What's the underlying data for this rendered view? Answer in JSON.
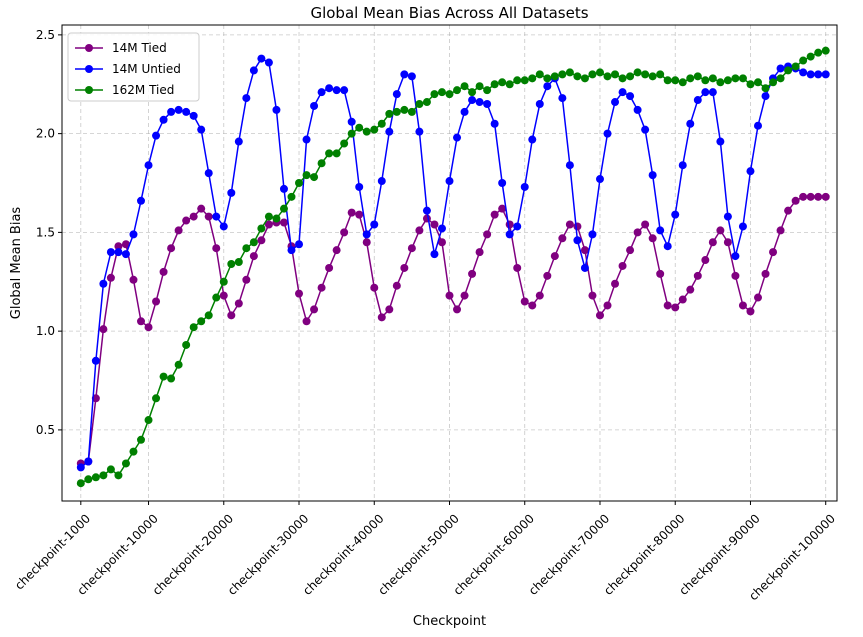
{
  "chart_data": {
    "type": "line",
    "title": "Global Mean Bias Across All Datasets",
    "xlabel": "Checkpoint",
    "ylabel": "Global Mean Bias",
    "ylim": [
      0.14,
      2.55
    ],
    "yticks": [
      0.5,
      1.0,
      1.5,
      2.0,
      2.5
    ],
    "ytick_labels": [
      "0.5",
      "1.0",
      "1.5",
      "2.0",
      "2.5"
    ],
    "xlim": [
      -1.5,
      101.5
    ],
    "xtick_positions": [
      1,
      10,
      20,
      30,
      40,
      50,
      60,
      70,
      80,
      90,
      100
    ],
    "xtick_labels": [
      "checkpoint-1000",
      "checkpoint-10000",
      "checkpoint-20000",
      "checkpoint-30000",
      "checkpoint-40000",
      "checkpoint-50000",
      "checkpoint-60000",
      "checkpoint-70000",
      "checkpoint-80000",
      "checkpoint-90000",
      "checkpoint-100000"
    ],
    "grid": true,
    "legend_position": "upper-left",
    "x": [
      1,
      2,
      3,
      4,
      5,
      6,
      7,
      8,
      9,
      10,
      11,
      12,
      13,
      14,
      15,
      16,
      17,
      18,
      19,
      20,
      21,
      22,
      23,
      24,
      25,
      26,
      27,
      28,
      29,
      30,
      31,
      32,
      33,
      34,
      35,
      36,
      37,
      38,
      39,
      40,
      41,
      42,
      43,
      44,
      45,
      46,
      47,
      48,
      49,
      50,
      51,
      52,
      53,
      54,
      55,
      56,
      57,
      58,
      59,
      60,
      61,
      62,
      63,
      64,
      65,
      66,
      67,
      68,
      69,
      70,
      71,
      72,
      73,
      74,
      75,
      76,
      77,
      78,
      79,
      80,
      81,
      82,
      83,
      84,
      85,
      86,
      87,
      88,
      89,
      90,
      91,
      92,
      93,
      94,
      95,
      96,
      97,
      98,
      99,
      100
    ],
    "series": [
      {
        "name": "14M Tied",
        "color": "#800080",
        "values": [
          0.33,
          0.34,
          0.66,
          1.01,
          1.27,
          1.43,
          1.44,
          1.26,
          1.05,
          1.02,
          1.15,
          1.3,
          1.42,
          1.51,
          1.56,
          1.58,
          1.62,
          1.58,
          1.42,
          1.18,
          1.08,
          1.14,
          1.26,
          1.38,
          1.46,
          1.54,
          1.55,
          1.55,
          1.43,
          1.19,
          1.05,
          1.11,
          1.22,
          1.32,
          1.41,
          1.5,
          1.6,
          1.59,
          1.45,
          1.22,
          1.07,
          1.11,
          1.23,
          1.32,
          1.42,
          1.51,
          1.57,
          1.54,
          1.45,
          1.18,
          1.11,
          1.18,
          1.29,
          1.4,
          1.49,
          1.59,
          1.62,
          1.54,
          1.32,
          1.15,
          1.13,
          1.18,
          1.28,
          1.38,
          1.47,
          1.54,
          1.53,
          1.41,
          1.18,
          1.08,
          1.13,
          1.24,
          1.33,
          1.41,
          1.5,
          1.54,
          1.47,
          1.29,
          1.13,
          1.12,
          1.16,
          1.21,
          1.28,
          1.36,
          1.45,
          1.51,
          1.45,
          1.28,
          1.13,
          1.1,
          1.17,
          1.29,
          1.4,
          1.51,
          1.61,
          1.66,
          1.68,
          1.68,
          1.68,
          1.68
        ]
      },
      {
        "name": "14M Untied",
        "color": "#0000ff",
        "values": [
          0.31,
          0.34,
          0.85,
          1.24,
          1.4,
          1.4,
          1.39,
          1.49,
          1.66,
          1.84,
          1.99,
          2.07,
          2.11,
          2.12,
          2.11,
          2.09,
          2.02,
          1.8,
          1.58,
          1.53,
          1.7,
          1.96,
          2.18,
          2.32,
          2.38,
          2.36,
          2.12,
          1.72,
          1.41,
          1.44,
          1.97,
          2.14,
          2.21,
          2.23,
          2.22,
          2.22,
          2.06,
          1.73,
          1.49,
          1.54,
          1.76,
          2.01,
          2.2,
          2.3,
          2.29,
          2.01,
          1.61,
          1.39,
          1.52,
          1.76,
          1.98,
          2.11,
          2.17,
          2.16,
          2.15,
          2.05,
          1.75,
          1.49,
          1.53,
          1.73,
          1.97,
          2.15,
          2.24,
          2.28,
          2.18,
          1.84,
          1.46,
          1.32,
          1.49,
          1.77,
          2.0,
          2.16,
          2.21,
          2.19,
          2.12,
          2.02,
          1.79,
          1.51,
          1.43,
          1.59,
          1.84,
          2.05,
          2.17,
          2.21,
          2.21,
          1.96,
          1.58,
          1.38,
          1.53,
          1.81,
          2.04,
          2.19,
          2.28,
          2.33,
          2.34,
          2.33,
          2.31,
          2.3,
          2.3,
          2.3
        ]
      },
      {
        "name": "162M Tied",
        "color": "#008000",
        "values": [
          0.23,
          0.25,
          0.26,
          0.27,
          0.3,
          0.27,
          0.33,
          0.39,
          0.45,
          0.55,
          0.66,
          0.77,
          0.76,
          0.83,
          0.93,
          1.02,
          1.05,
          1.08,
          1.17,
          1.25,
          1.34,
          1.35,
          1.42,
          1.45,
          1.52,
          1.58,
          1.57,
          1.62,
          1.68,
          1.75,
          1.79,
          1.78,
          1.85,
          1.9,
          1.9,
          1.95,
          2.0,
          2.03,
          2.01,
          2.02,
          2.05,
          2.1,
          2.11,
          2.12,
          2.11,
          2.15,
          2.16,
          2.2,
          2.21,
          2.2,
          2.22,
          2.24,
          2.21,
          2.24,
          2.22,
          2.25,
          2.26,
          2.25,
          2.27,
          2.27,
          2.28,
          2.3,
          2.28,
          2.29,
          2.3,
          2.31,
          2.29,
          2.28,
          2.3,
          2.31,
          2.29,
          2.3,
          2.28,
          2.29,
          2.31,
          2.3,
          2.29,
          2.3,
          2.27,
          2.27,
          2.26,
          2.28,
          2.29,
          2.27,
          2.28,
          2.26,
          2.27,
          2.28,
          2.28,
          2.25,
          2.26,
          2.23,
          2.26,
          2.28,
          2.32,
          2.34,
          2.37,
          2.39,
          2.41,
          2.42
        ]
      }
    ]
  }
}
